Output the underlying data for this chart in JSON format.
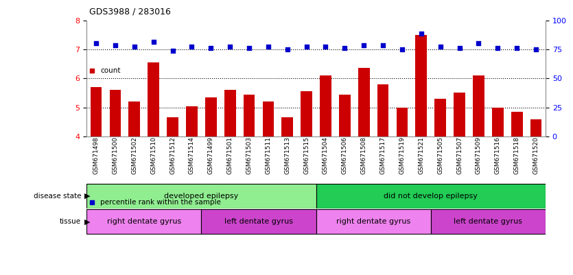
{
  "title": "GDS3988 / 283016",
  "samples": [
    "GSM671498",
    "GSM671500",
    "GSM671502",
    "GSM671510",
    "GSM671512",
    "GSM671514",
    "GSM671499",
    "GSM671501",
    "GSM671503",
    "GSM671511",
    "GSM671513",
    "GSM671515",
    "GSM671504",
    "GSM671506",
    "GSM671508",
    "GSM671517",
    "GSM671519",
    "GSM671521",
    "GSM671505",
    "GSM671507",
    "GSM671509",
    "GSM671516",
    "GSM671518",
    "GSM671520"
  ],
  "bar_values": [
    5.7,
    5.6,
    5.2,
    6.55,
    4.65,
    5.05,
    5.35,
    5.6,
    5.45,
    5.2,
    4.65,
    5.55,
    6.1,
    5.45,
    6.35,
    5.8,
    5.0,
    7.5,
    5.3,
    5.5,
    6.1,
    5.0,
    4.85,
    4.6
  ],
  "dot_values": [
    7.2,
    7.15,
    7.1,
    7.25,
    6.95,
    7.1,
    7.05,
    7.1,
    7.05,
    7.1,
    7.0,
    7.1,
    7.1,
    7.05,
    7.15,
    7.15,
    7.0,
    7.55,
    7.1,
    7.05,
    7.2,
    7.05,
    7.05,
    7.0
  ],
  "bar_color": "#cc0000",
  "dot_color": "#0000cc",
  "ylim_left": [
    4,
    8
  ],
  "ylim_right": [
    0,
    100
  ],
  "yticks_left": [
    4,
    5,
    6,
    7,
    8
  ],
  "yticks_right": [
    0,
    25,
    50,
    75,
    100
  ],
  "disease_state_groups": [
    {
      "label": "developed epilepsy",
      "start": 0,
      "end": 12,
      "color": "#90ee90"
    },
    {
      "label": "did not develop epilepsy",
      "start": 12,
      "end": 24,
      "color": "#22cc55"
    }
  ],
  "tissue_groups": [
    {
      "label": "right dentate gyrus",
      "start": 0,
      "end": 6,
      "color": "#ee82ee"
    },
    {
      "label": "left dentate gyrus",
      "start": 6,
      "end": 12,
      "color": "#cc44cc"
    },
    {
      "label": "right dentate gyrus",
      "start": 12,
      "end": 18,
      "color": "#ee82ee"
    },
    {
      "label": "left dentate gyrus",
      "start": 18,
      "end": 24,
      "color": "#cc44cc"
    }
  ],
  "legend_items": [
    {
      "label": "count",
      "color": "#cc0000"
    },
    {
      "label": "percentile rank within the sample",
      "color": "#0000cc"
    }
  ],
  "background_color": "#ffffff"
}
